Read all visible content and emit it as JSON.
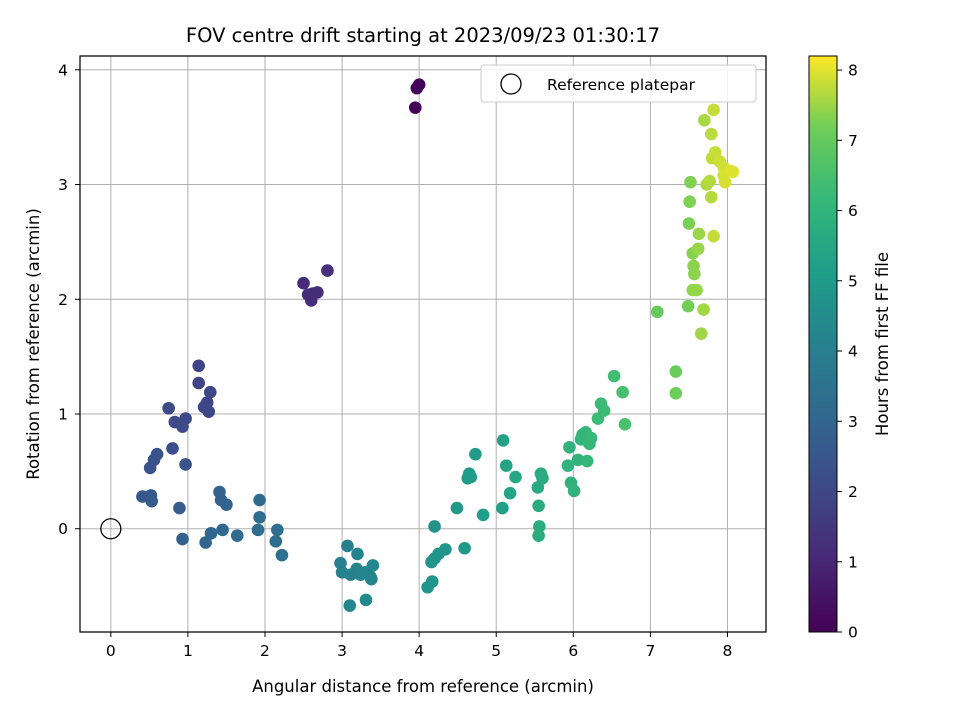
{
  "chart_data": {
    "type": "scatter",
    "title": "FOV centre drift starting at 2023/09/23 01:30:17",
    "xlabel": "Angular distance from reference (arcmin)",
    "ylabel": "Rotation from reference (arcmin)",
    "xlim": [
      -0.4,
      8.5
    ],
    "ylim": [
      -0.9,
      4.12
    ],
    "xticks": [
      "0",
      "1",
      "2",
      "3",
      "4",
      "5",
      "6",
      "7",
      "8"
    ],
    "yticks": [
      "0",
      "1",
      "2",
      "3",
      "4"
    ],
    "grid": true,
    "legend": {
      "placement": "top-right",
      "entries": [
        "Reference platepar"
      ]
    },
    "colorbar": {
      "label": "Hours from first FF file",
      "range": [
        0,
        8.2
      ],
      "ticks": [
        "0",
        "1",
        "2",
        "3",
        "4",
        "5",
        "6",
        "7",
        "8"
      ],
      "colormap": "viridis"
    },
    "reference_point": {
      "x": 0,
      "y": 0
    },
    "points": [
      {
        "x": 3.97,
        "y": 3.84,
        "t": 0.05
      },
      {
        "x": 4.0,
        "y": 3.87,
        "t": 0.08
      },
      {
        "x": 3.95,
        "y": 3.67,
        "t": 0.1
      },
      {
        "x": 2.5,
        "y": 2.14,
        "t": 1.1
      },
      {
        "x": 2.56,
        "y": 2.04,
        "t": 1.15
      },
      {
        "x": 2.6,
        "y": 1.99,
        "t": 1.18
      },
      {
        "x": 2.62,
        "y": 2.05,
        "t": 1.2
      },
      {
        "x": 2.68,
        "y": 2.06,
        "t": 1.22
      },
      {
        "x": 2.81,
        "y": 2.25,
        "t": 1.25
      },
      {
        "x": 1.14,
        "y": 1.42,
        "t": 1.9
      },
      {
        "x": 1.14,
        "y": 1.27,
        "t": 1.92
      },
      {
        "x": 1.21,
        "y": 1.06,
        "t": 1.95
      },
      {
        "x": 1.25,
        "y": 1.1,
        "t": 1.97
      },
      {
        "x": 1.27,
        "y": 1.02,
        "t": 2.0
      },
      {
        "x": 1.29,
        "y": 1.19,
        "t": 2.02
      },
      {
        "x": 0.97,
        "y": 0.96,
        "t": 2.05
      },
      {
        "x": 0.93,
        "y": 0.89,
        "t": 2.08
      },
      {
        "x": 0.83,
        "y": 0.93,
        "t": 2.1
      },
      {
        "x": 0.75,
        "y": 1.05,
        "t": 2.12
      },
      {
        "x": 0.8,
        "y": 0.7,
        "t": 2.2
      },
      {
        "x": 0.6,
        "y": 0.65,
        "t": 2.3
      },
      {
        "x": 0.56,
        "y": 0.6,
        "t": 2.32
      },
      {
        "x": 0.51,
        "y": 0.53,
        "t": 2.35
      },
      {
        "x": 0.97,
        "y": 0.56,
        "t": 2.4
      },
      {
        "x": 0.41,
        "y": 0.28,
        "t": 2.6
      },
      {
        "x": 0.52,
        "y": 0.29,
        "t": 2.62
      },
      {
        "x": 0.53,
        "y": 0.24,
        "t": 2.65
      },
      {
        "x": 0.89,
        "y": 0.18,
        "t": 2.7
      },
      {
        "x": 0.93,
        "y": -0.09,
        "t": 2.8
      },
      {
        "x": 1.41,
        "y": 0.32,
        "t": 2.9
      },
      {
        "x": 1.43,
        "y": 0.25,
        "t": 2.92
      },
      {
        "x": 1.5,
        "y": 0.21,
        "t": 2.95
      },
      {
        "x": 1.23,
        "y": -0.12,
        "t": 3.0
      },
      {
        "x": 1.3,
        "y": -0.04,
        "t": 3.05
      },
      {
        "x": 1.45,
        "y": -0.01,
        "t": 3.1
      },
      {
        "x": 1.64,
        "y": -0.06,
        "t": 3.15
      },
      {
        "x": 1.93,
        "y": 0.25,
        "t": 3.2
      },
      {
        "x": 1.93,
        "y": 0.1,
        "t": 3.22
      },
      {
        "x": 1.91,
        "y": -0.01,
        "t": 3.25
      },
      {
        "x": 2.16,
        "y": -0.01,
        "t": 3.3
      },
      {
        "x": 2.14,
        "y": -0.11,
        "t": 3.35
      },
      {
        "x": 2.22,
        "y": -0.23,
        "t": 3.4
      },
      {
        "x": 3.07,
        "y": -0.15,
        "t": 4.0
      },
      {
        "x": 2.98,
        "y": -0.3,
        "t": 4.05
      },
      {
        "x": 3.0,
        "y": -0.38,
        "t": 4.08
      },
      {
        "x": 3.11,
        "y": -0.4,
        "t": 4.1
      },
      {
        "x": 3.2,
        "y": -0.22,
        "t": 4.12
      },
      {
        "x": 3.19,
        "y": -0.35,
        "t": 4.15
      },
      {
        "x": 3.24,
        "y": -0.4,
        "t": 4.18
      },
      {
        "x": 3.3,
        "y": -0.38,
        "t": 4.2
      },
      {
        "x": 3.37,
        "y": -0.42,
        "t": 4.22
      },
      {
        "x": 3.38,
        "y": -0.44,
        "t": 4.25
      },
      {
        "x": 3.4,
        "y": -0.32,
        "t": 4.28
      },
      {
        "x": 3.1,
        "y": -0.67,
        "t": 4.3
      },
      {
        "x": 3.31,
        "y": -0.62,
        "t": 4.35
      },
      {
        "x": 4.2,
        "y": 0.02,
        "t": 4.7
      },
      {
        "x": 4.16,
        "y": -0.29,
        "t": 4.72
      },
      {
        "x": 4.2,
        "y": -0.26,
        "t": 4.75
      },
      {
        "x": 4.25,
        "y": -0.22,
        "t": 4.78
      },
      {
        "x": 4.34,
        "y": -0.18,
        "t": 4.8
      },
      {
        "x": 4.17,
        "y": -0.46,
        "t": 4.82
      },
      {
        "x": 4.11,
        "y": -0.51,
        "t": 4.85
      },
      {
        "x": 4.49,
        "y": 0.18,
        "t": 4.9
      },
      {
        "x": 4.59,
        "y": -0.17,
        "t": 4.92
      },
      {
        "x": 4.63,
        "y": 0.44,
        "t": 5.0
      },
      {
        "x": 4.65,
        "y": 0.48,
        "t": 5.02
      },
      {
        "x": 4.67,
        "y": 0.45,
        "t": 5.05
      },
      {
        "x": 4.73,
        "y": 0.65,
        "t": 5.1
      },
      {
        "x": 4.83,
        "y": 0.12,
        "t": 5.15
      },
      {
        "x": 5.08,
        "y": 0.18,
        "t": 5.2
      },
      {
        "x": 5.09,
        "y": 0.77,
        "t": 5.3
      },
      {
        "x": 5.13,
        "y": 0.55,
        "t": 5.35
      },
      {
        "x": 5.18,
        "y": 0.31,
        "t": 5.4
      },
      {
        "x": 5.25,
        "y": 0.45,
        "t": 5.45
      },
      {
        "x": 5.54,
        "y": 0.36,
        "t": 5.6
      },
      {
        "x": 5.58,
        "y": 0.48,
        "t": 5.62
      },
      {
        "x": 5.6,
        "y": 0.44,
        "t": 5.65
      },
      {
        "x": 5.55,
        "y": 0.2,
        "t": 5.68
      },
      {
        "x": 5.56,
        "y": 0.02,
        "t": 5.7
      },
      {
        "x": 5.55,
        "y": -0.06,
        "t": 5.72
      },
      {
        "x": 5.93,
        "y": 0.55,
        "t": 5.9
      },
      {
        "x": 5.95,
        "y": 0.71,
        "t": 5.92
      },
      {
        "x": 5.97,
        "y": 0.4,
        "t": 5.95
      },
      {
        "x": 6.01,
        "y": 0.33,
        "t": 5.97
      },
      {
        "x": 6.06,
        "y": 0.6,
        "t": 6.0
      },
      {
        "x": 6.1,
        "y": 0.78,
        "t": 6.02
      },
      {
        "x": 6.12,
        "y": 0.82,
        "t": 6.05
      },
      {
        "x": 6.14,
        "y": 0.78,
        "t": 6.08
      },
      {
        "x": 6.16,
        "y": 0.84,
        "t": 6.1
      },
      {
        "x": 6.18,
        "y": 0.59,
        "t": 6.12
      },
      {
        "x": 6.21,
        "y": 0.74,
        "t": 6.15
      },
      {
        "x": 6.23,
        "y": 0.79,
        "t": 6.18
      },
      {
        "x": 6.32,
        "y": 0.96,
        "t": 6.25
      },
      {
        "x": 6.36,
        "y": 1.09,
        "t": 6.28
      },
      {
        "x": 6.4,
        "y": 1.03,
        "t": 6.3
      },
      {
        "x": 6.53,
        "y": 1.33,
        "t": 6.4
      },
      {
        "x": 6.64,
        "y": 1.19,
        "t": 6.5
      },
      {
        "x": 6.67,
        "y": 0.91,
        "t": 6.55
      },
      {
        "x": 7.09,
        "y": 1.89,
        "t": 7.0
      },
      {
        "x": 7.33,
        "y": 1.37,
        "t": 7.1
      },
      {
        "x": 7.33,
        "y": 1.18,
        "t": 7.12
      },
      {
        "x": 7.49,
        "y": 1.94,
        "t": 7.2
      },
      {
        "x": 7.5,
        "y": 2.66,
        "t": 7.25
      },
      {
        "x": 7.51,
        "y": 2.85,
        "t": 7.28
      },
      {
        "x": 7.52,
        "y": 3.02,
        "t": 7.3
      },
      {
        "x": 7.55,
        "y": 2.4,
        "t": 7.35
      },
      {
        "x": 7.56,
        "y": 2.29,
        "t": 7.38
      },
      {
        "x": 7.57,
        "y": 2.22,
        "t": 7.4
      },
      {
        "x": 7.55,
        "y": 2.08,
        "t": 7.42
      },
      {
        "x": 7.6,
        "y": 2.08,
        "t": 7.45
      },
      {
        "x": 7.62,
        "y": 2.44,
        "t": 7.48
      },
      {
        "x": 7.63,
        "y": 2.57,
        "t": 7.5
      },
      {
        "x": 7.66,
        "y": 1.7,
        "t": 7.52
      },
      {
        "x": 7.69,
        "y": 1.91,
        "t": 7.55
      },
      {
        "x": 7.7,
        "y": 3.56,
        "t": 7.6
      },
      {
        "x": 7.73,
        "y": 3.0,
        "t": 7.65
      },
      {
        "x": 7.77,
        "y": 3.03,
        "t": 7.68
      },
      {
        "x": 7.79,
        "y": 2.89,
        "t": 7.7
      },
      {
        "x": 7.79,
        "y": 3.44,
        "t": 7.72
      },
      {
        "x": 7.8,
        "y": 3.23,
        "t": 7.75
      },
      {
        "x": 7.82,
        "y": 2.55,
        "t": 7.78
      },
      {
        "x": 7.82,
        "y": 3.65,
        "t": 7.8
      },
      {
        "x": 7.84,
        "y": 3.28,
        "t": 7.82
      },
      {
        "x": 7.9,
        "y": 3.2,
        "t": 7.85
      },
      {
        "x": 7.95,
        "y": 3.15,
        "t": 7.88
      },
      {
        "x": 7.95,
        "y": 3.08,
        "t": 7.9
      },
      {
        "x": 7.97,
        "y": 3.02,
        "t": 7.92
      },
      {
        "x": 8.03,
        "y": 3.12,
        "t": 7.95
      },
      {
        "x": 8.07,
        "y": 3.11,
        "t": 7.98
      }
    ]
  }
}
